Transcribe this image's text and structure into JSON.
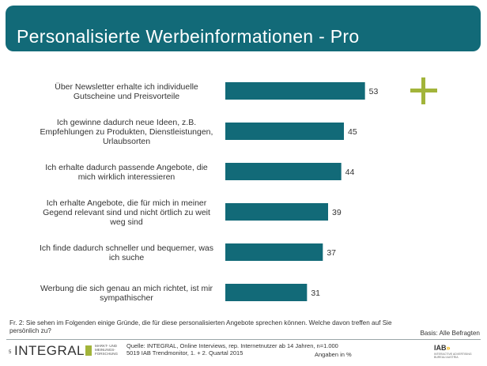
{
  "header": {
    "title": "Personalisierte Werbeinformationen - Pro"
  },
  "chart_data": {
    "type": "bar",
    "orientation": "horizontal",
    "categories": [
      [
        "Über Newsletter erhalte ich individuelle",
        "Gutscheine und Preisvorteile"
      ],
      [
        "Ich gewinne dadurch neue Ideen, z.B.",
        "Empfehlungen zu Produkten, Dienstleistungen,",
        "Urlaubsorten"
      ],
      [
        "Ich erhalte dadurch passende Angebote, die",
        "mich wirklich interessieren"
      ],
      [
        "Ich erhalte Angebote, die für mich in meiner",
        "Gegend relevant sind und nicht örtlich zu weit",
        "weg sind"
      ],
      [
        "Ich finde dadurch schneller und bequemer, was",
        "ich suche"
      ],
      [
        "Werbung die sich genau an mich richtet, ist mir",
        "sympathischer"
      ]
    ],
    "values": [
      53,
      45,
      44,
      39,
      37,
      31
    ],
    "xlim": [
      0,
      60
    ],
    "unit": "Angaben in %",
    "bar_color": "#126a78",
    "grid": false
  },
  "decor": {
    "plus_symbol": "+",
    "plus_color": "#a2b43a",
    "plus_icon": "plus-icon"
  },
  "footer": {
    "question": "Fr. 2: Sie sehen im Folgenden einige Gründe, die für diese personalisierten Angebote sprechen können. Welche davon treffen auf Sie persönlich zu?",
    "basis": "Basis: Alle Befragten",
    "page_number": "5",
    "logo_text": "INTEGRAL",
    "logo_sub": "MARKT- UND MEINUNGS- FORSCHUNG",
    "source_line1": "Quelle: INTEGRAL, Online Interviews, rep. Internetnutzer ab 14 Jahren, n=1.000",
    "source_line2": "5019 IAB Trendmonitor, 1. + 2. Quartal 2015",
    "unit_label": "Angaben in %",
    "iab_logo": "IAB",
    "iab_arrows": "»",
    "iab_sub": "INTERACTIVE ADVERTISING BUREAU AUSTRIA"
  }
}
